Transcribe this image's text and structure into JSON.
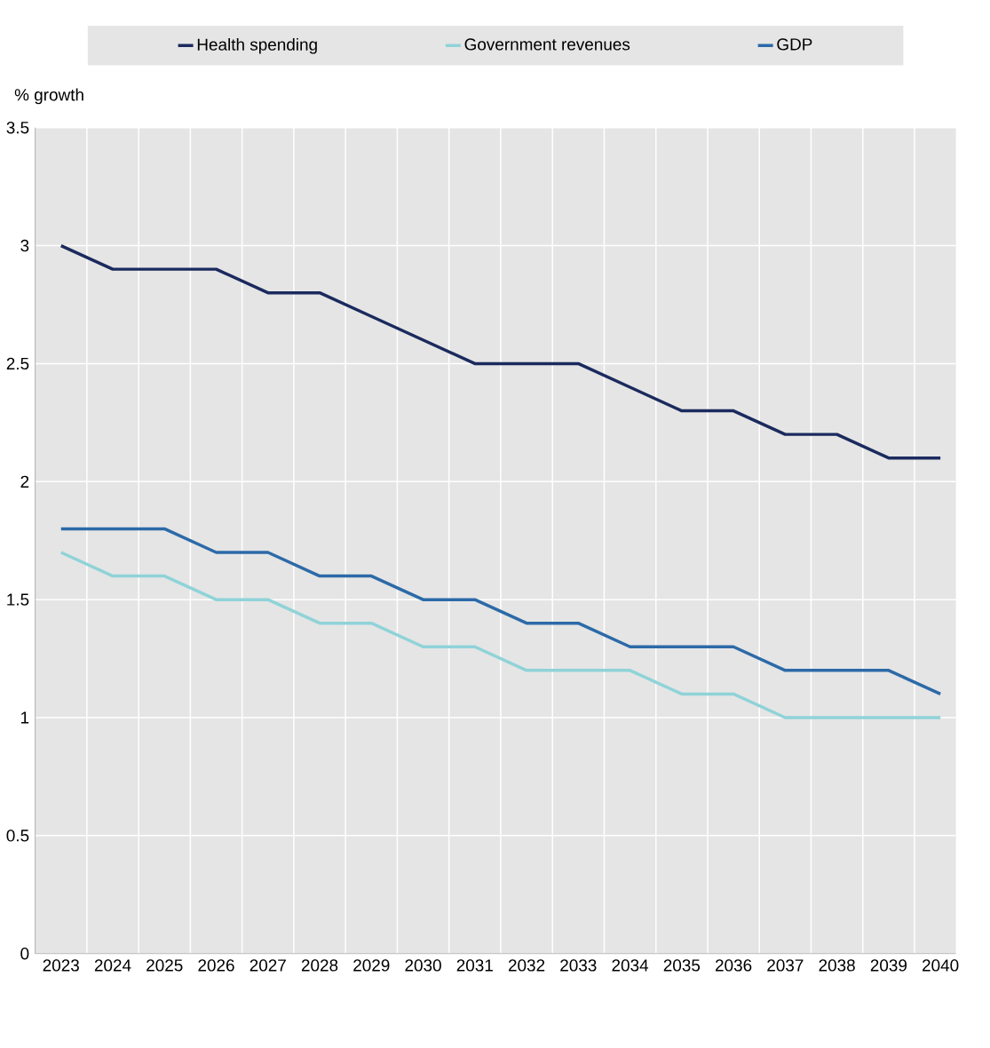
{
  "chart_data": {
    "type": "line",
    "ylabel": "% growth",
    "categories": [
      "2023",
      "2024",
      "2025",
      "2026",
      "2027",
      "2028",
      "2029",
      "2030",
      "2031",
      "2032",
      "2033",
      "2034",
      "2035",
      "2036",
      "2037",
      "2038",
      "2039",
      "2040"
    ],
    "series": [
      {
        "name": "Health spending",
        "color": "#1b2a5e",
        "values": [
          3.0,
          2.9,
          2.9,
          2.9,
          2.8,
          2.8,
          2.7,
          2.6,
          2.5,
          2.5,
          2.5,
          2.4,
          2.3,
          2.3,
          2.2,
          2.2,
          2.1,
          2.1
        ]
      },
      {
        "name": "Government revenues",
        "color": "#8fd3d8",
        "values": [
          1.7,
          1.6,
          1.6,
          1.5,
          1.5,
          1.4,
          1.4,
          1.3,
          1.3,
          1.2,
          1.2,
          1.2,
          1.1,
          1.1,
          1.0,
          1.0,
          1.0,
          1.0
        ]
      },
      {
        "name": "GDP",
        "color": "#2c6aa8",
        "values": [
          1.8,
          1.8,
          1.8,
          1.7,
          1.7,
          1.6,
          1.6,
          1.5,
          1.5,
          1.4,
          1.4,
          1.3,
          1.3,
          1.3,
          1.2,
          1.2,
          1.2,
          1.1
        ]
      }
    ],
    "ylim": [
      0,
      3.5
    ],
    "yticks": [
      0,
      0.5,
      1,
      1.5,
      2,
      2.5,
      3,
      3.5
    ],
    "grid": true,
    "legend": "top"
  }
}
